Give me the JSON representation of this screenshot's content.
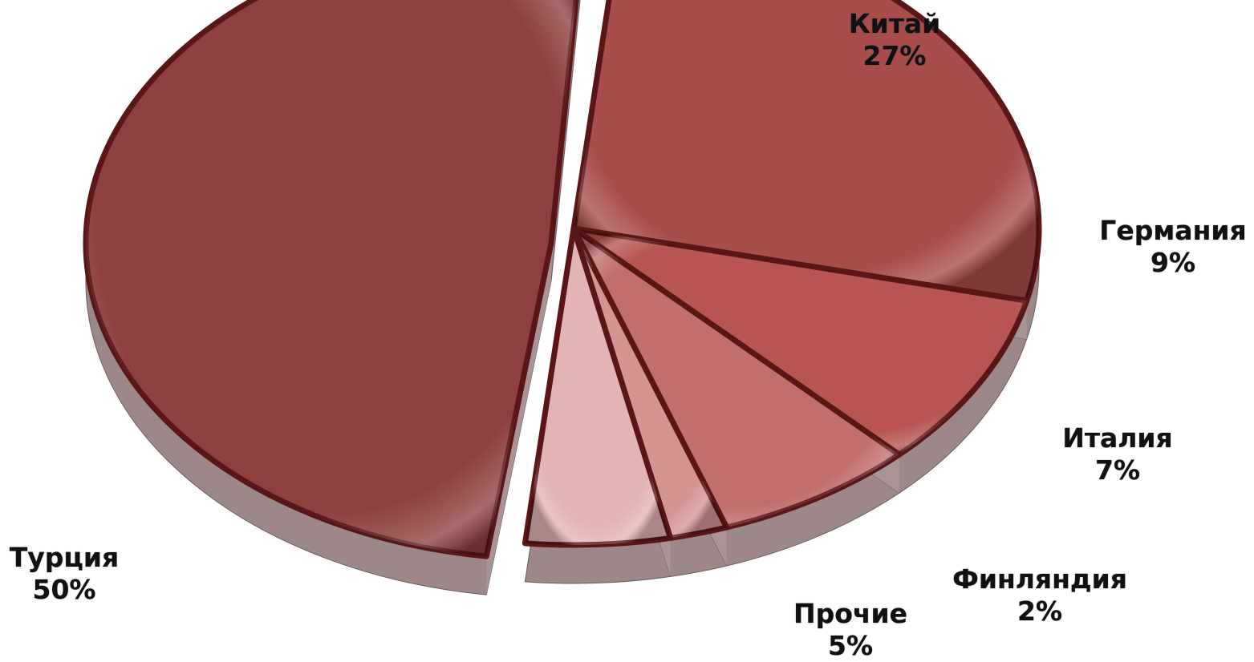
{
  "chart_data": {
    "type": "pie",
    "title": "",
    "slices": [
      {
        "label": "Турция",
        "percent_label": "50%",
        "value": 50,
        "color": "#8e4040"
      },
      {
        "label": "Китай",
        "percent_label": "27%",
        "value": 27,
        "color": "#a84c4c"
      },
      {
        "label": "Германия",
        "percent_label": "9%",
        "value": 9,
        "color": "#b85454"
      },
      {
        "label": "Италия",
        "percent_label": "7%",
        "value": 7,
        "color": "#c26e6e"
      },
      {
        "label": "Финляндия",
        "percent_label": "2%",
        "value": 2,
        "color": "#d49494"
      },
      {
        "label": "Прочие",
        "percent_label": "5%",
        "value": 5,
        "color": "#e2b4b4"
      }
    ],
    "separator_color": "#5a1616",
    "side_color": "#9c8888",
    "exploded_slice": "Турция",
    "three_d": true
  }
}
